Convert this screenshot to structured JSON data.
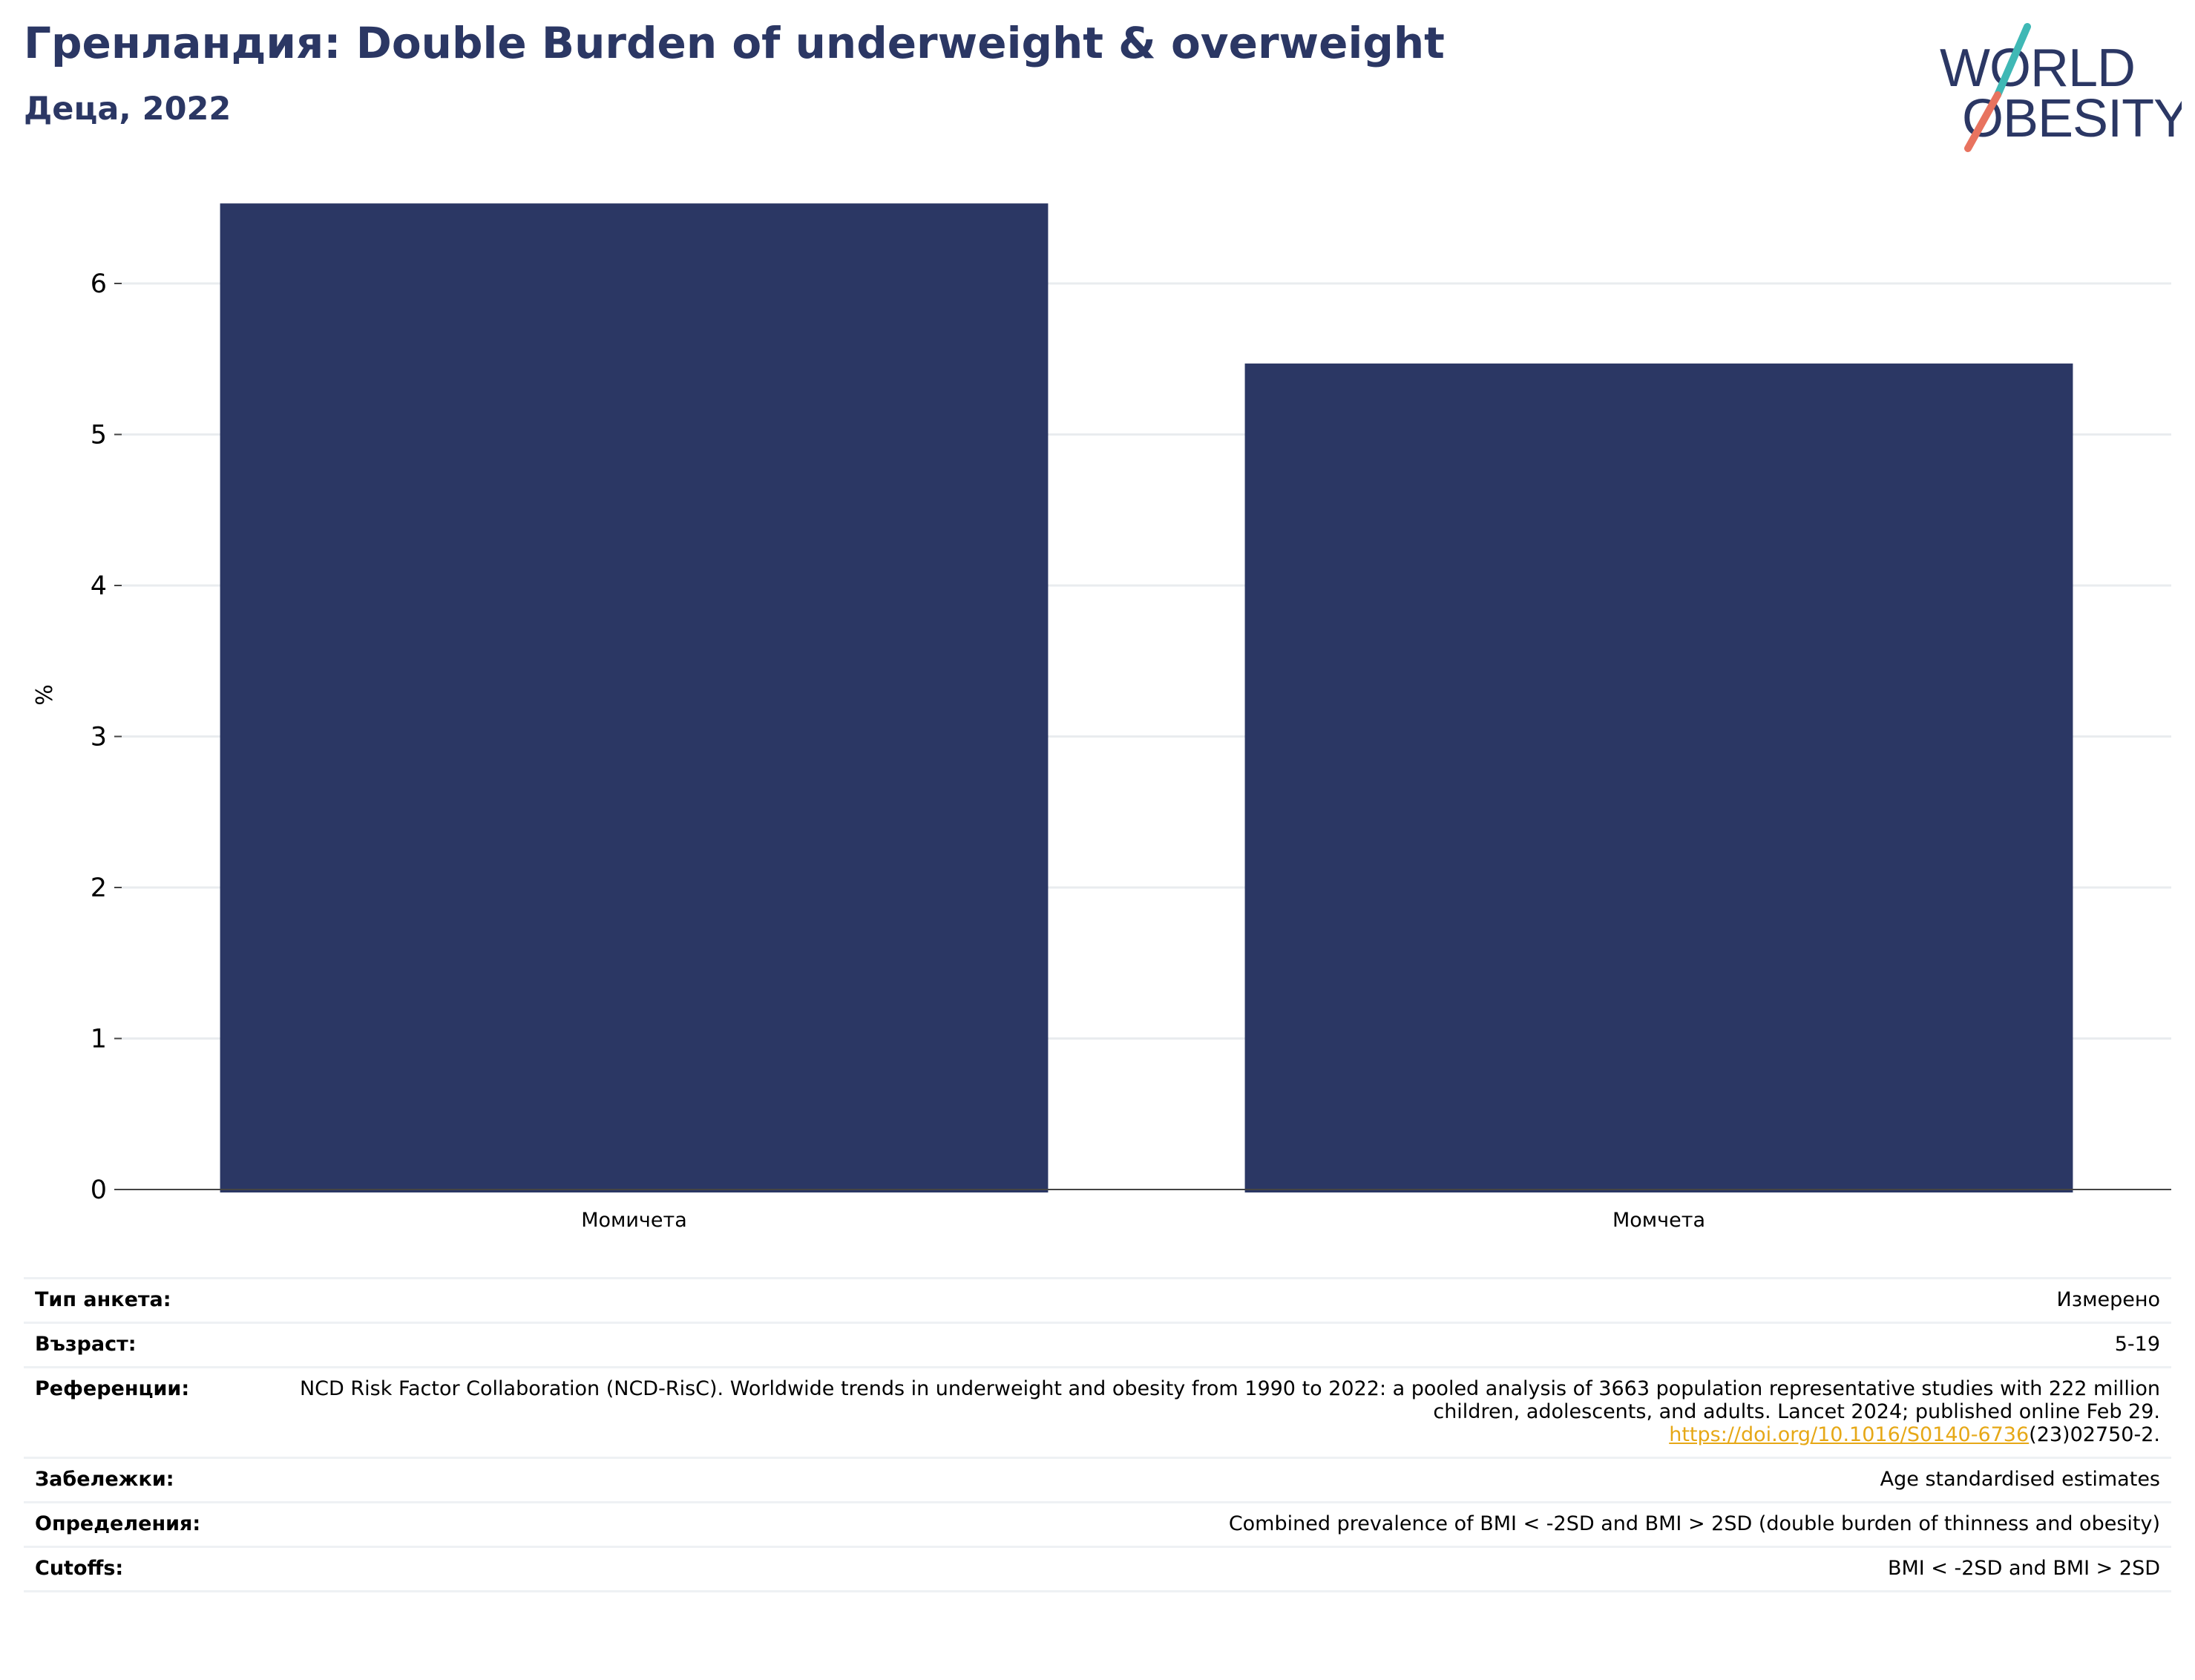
{
  "header": {
    "title": "Гренландия: Double Burden of underweight & overweight",
    "subtitle": "Деца, 2022"
  },
  "logo": {
    "line1": "WORLD",
    "line2": "OBESITY",
    "colors": {
      "text": "#2b3764",
      "slash_top": "#3fb8b5",
      "slash_bottom": "#e8735f"
    }
  },
  "chart_data": {
    "type": "bar",
    "title": "Гренландия: Double Burden of underweight & overweight",
    "subtitle": "Деца, 2022",
    "categories": [
      "Момичета",
      "Момчета"
    ],
    "values": [
      6.53,
      5.47
    ],
    "xlabel": "",
    "ylabel": "%",
    "ylim": [
      0,
      6.5
    ],
    "yticks": [
      0,
      1,
      2,
      3,
      4,
      5,
      6
    ],
    "grid": true,
    "bar_color": "#2b3764"
  },
  "meta": {
    "rows": [
      {
        "label": "Тип анкета:",
        "value": "Измерено"
      },
      {
        "label": "Възраст:",
        "value": "5-19"
      },
      {
        "label": "Референции:",
        "value": "NCD Risk Factor Collaboration (NCD-RisC). Worldwide trends in underweight and obesity from 1990 to 2022: a pooled analysis of 3663 population representative studies with 222 million children, adolescents, and adults. Lancet 2024; published online Feb 29.",
        "link": "https://doi.org/10.1016/S0140-6736",
        "link_suffix": "(23)02750-2."
      },
      {
        "label": "Забележки:",
        "value": "Age standardised estimates"
      },
      {
        "label": "Определения:",
        "value": "Combined prevalence of BMI < -2SD and BMI > 2SD (double burden of thinness and obesity)"
      },
      {
        "label": "Cutoffs:",
        "value": "BMI < -2SD and BMI > 2SD"
      }
    ],
    "link_color": "#e6a817"
  }
}
